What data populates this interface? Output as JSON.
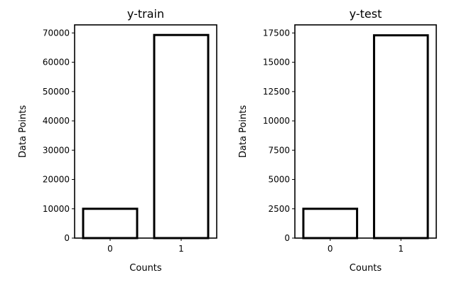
{
  "chart_data": [
    {
      "type": "bar",
      "title": "y-train",
      "xlabel": "Counts",
      "ylabel": "Data Points",
      "categories": [
        "0",
        "1"
      ],
      "values": [
        10000,
        69300
      ],
      "ylim": [
        0,
        72750
      ],
      "yticks": [
        0,
        10000,
        20000,
        30000,
        40000,
        50000,
        60000,
        70000
      ],
      "ytick_labels": [
        "0",
        "10000",
        "20000",
        "30000",
        "40000",
        "50000",
        "60000",
        "70000"
      ],
      "grid": false,
      "bar_fill": "#ffffff",
      "bar_edge": "#000000"
    },
    {
      "type": "bar",
      "title": "y-test",
      "xlabel": "Counts",
      "ylabel": "Data Points",
      "categories": [
        "0",
        "1"
      ],
      "values": [
        2500,
        17300
      ],
      "ylim": [
        0,
        18190
      ],
      "yticks": [
        0,
        2500,
        5000,
        7500,
        10000,
        12500,
        15000,
        17500
      ],
      "ytick_labels": [
        "0",
        "2500",
        "5000",
        "7500",
        "10000",
        "12500",
        "15000",
        "17500"
      ],
      "grid": false,
      "bar_fill": "#ffffff",
      "bar_edge": "#000000"
    }
  ]
}
